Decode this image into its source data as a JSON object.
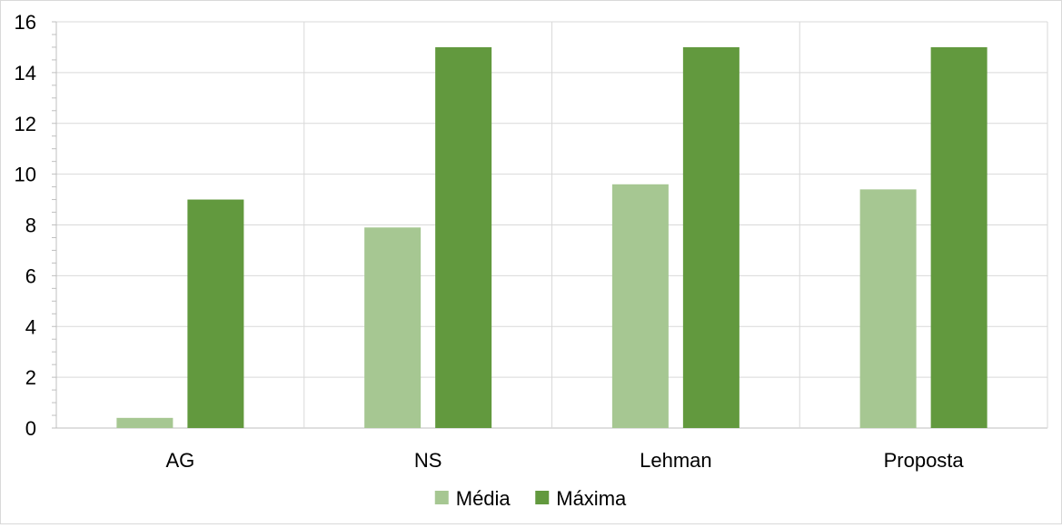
{
  "chart_data": {
    "type": "bar",
    "title": "",
    "xlabel": "",
    "ylabel": "",
    "categories": [
      "AG",
      "NS",
      "Lehman",
      "Proposta"
    ],
    "series": [
      {
        "name": "Média",
        "values": [
          0.4,
          7.9,
          9.6,
          9.4
        ],
        "color": "#a6c792"
      },
      {
        "name": "Máxima",
        "values": [
          9,
          15,
          15,
          15
        ],
        "color": "#62993e"
      }
    ],
    "ylim": [
      0,
      16
    ],
    "yticks": [
      0,
      2,
      4,
      6,
      8,
      10,
      12,
      14,
      16
    ],
    "grid": true,
    "legend_position": "bottom"
  }
}
